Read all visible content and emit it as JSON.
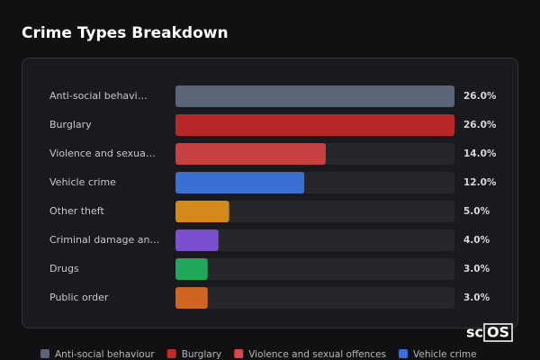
{
  "chart_data": {
    "type": "bar",
    "orientation": "horizontal",
    "title": "Crime Types Breakdown",
    "categories": [
      "Anti-social behavi…",
      "Burglary",
      "Violence and sexua…",
      "Vehicle crime",
      "Other theft",
      "Criminal damage an…",
      "Drugs",
      "Public order"
    ],
    "values": [
      26,
      26,
      14,
      12,
      5,
      4,
      3,
      3
    ],
    "value_labels": [
      "26.0%",
      "26.0%",
      "14.0%",
      "12.0%",
      "5.0%",
      "4.0%",
      "3.0%",
      "3.0%"
    ],
    "colors": [
      "#5a6577",
      "#b82828",
      "#c94040",
      "#3a6fd4",
      "#d4891a",
      "#7a4fd0",
      "#22a85a",
      "#d06420"
    ],
    "legend": [
      {
        "name": "Anti-social behaviour",
        "color": "#5a6577"
      },
      {
        "name": "Burglary",
        "color": "#c42a2a"
      },
      {
        "name": "Violence and sexual offences",
        "color": "#d94848"
      },
      {
        "name": "Vehicle crime",
        "color": "#3b6fe0"
      }
    ]
  },
  "logo": {
    "left": "sc",
    "right": "OS"
  }
}
